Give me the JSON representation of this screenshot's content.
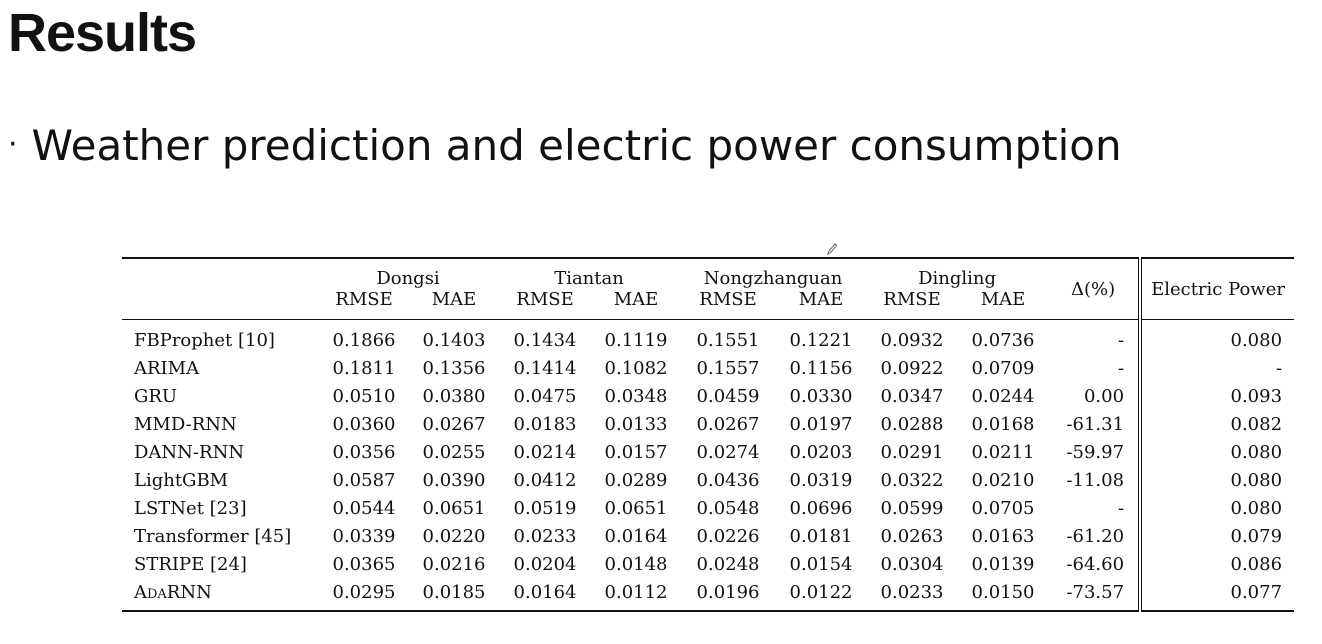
{
  "slide": {
    "title": "Results",
    "bullet_symbol": "·",
    "bullet_text": "Weather prediction and electric power consumption"
  },
  "table": {
    "groups": [
      "Dongsi",
      "Tiantan",
      "Nongzhanguan",
      "Dingling"
    ],
    "delta_header": "Δ(%)",
    "ep_header": "Electric Power",
    "metrics": [
      "RMSE",
      "MAE"
    ],
    "rows": [
      {
        "method": "FBProphet [10]",
        "values": [
          "0.1866",
          "0.1403",
          "0.1434",
          "0.1119",
          "0.1551",
          "0.1221",
          "0.0932",
          "0.0736"
        ],
        "delta": "-",
        "ep": "0.080",
        "bold": false
      },
      {
        "method": "ARIMA",
        "values": [
          "0.1811",
          "0.1356",
          "0.1414",
          "0.1082",
          "0.1557",
          "0.1156",
          "0.0922",
          "0.0709"
        ],
        "delta": "-",
        "ep": "-",
        "bold": false
      },
      {
        "method": "GRU",
        "values": [
          "0.0510",
          "0.0380",
          "0.0475",
          "0.0348",
          "0.0459",
          "0.0330",
          "0.0347",
          "0.0244"
        ],
        "delta": "0.00",
        "ep": "0.093",
        "bold": false
      },
      {
        "method": "MMD-RNN",
        "values": [
          "0.0360",
          "0.0267",
          "0.0183",
          "0.0133",
          "0.0267",
          "0.0197",
          "0.0288",
          "0.0168"
        ],
        "delta": "-61.31",
        "ep": "0.082",
        "bold": false
      },
      {
        "method": "DANN-RNN",
        "values": [
          "0.0356",
          "0.0255",
          "0.0214",
          "0.0157",
          "0.0274",
          "0.0203",
          "0.0291",
          "0.0211"
        ],
        "delta": "-59.97",
        "ep": "0.080",
        "bold": false
      },
      {
        "method": "LightGBM",
        "values": [
          "0.0587",
          "0.0390",
          "0.0412",
          "0.0289",
          "0.0436",
          "0.0319",
          "0.0322",
          "0.0210"
        ],
        "delta": "-11.08",
        "ep": "0.080",
        "bold": false
      },
      {
        "method": "LSTNet [23]",
        "values": [
          "0.0544",
          "0.0651",
          "0.0519",
          "0.0651",
          "0.0548",
          "0.0696",
          "0.0599",
          "0.0705"
        ],
        "delta": "-",
        "ep": "0.080",
        "bold": false
      },
      {
        "method": "Transformer [45]",
        "values": [
          "0.0339",
          "0.0220",
          "0.0233",
          "0.0164",
          "0.0226",
          "0.0181",
          "0.0263",
          "0.0163"
        ],
        "delta": "-61.20",
        "ep": "0.079",
        "bold": false
      },
      {
        "method": "STRIPE [24]",
        "values": [
          "0.0365",
          "0.0216",
          "0.0204",
          "0.0148",
          "0.0248",
          "0.0154",
          "0.0304",
          "0.0139"
        ],
        "delta": "-64.60",
        "ep": "0.086",
        "bold": false
      },
      {
        "method": "AdaRNN",
        "values": [
          "0.0295",
          "0.0185",
          "0.0164",
          "0.0112",
          "0.0196",
          "0.0122",
          "0.0233",
          "0.0150"
        ],
        "delta": "-73.57",
        "ep": "0.077",
        "bold": true,
        "smallcaps": true
      }
    ]
  }
}
